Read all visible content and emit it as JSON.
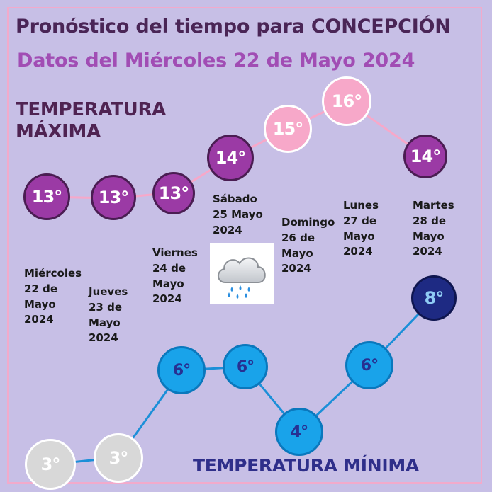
{
  "title": "Pronóstico del tiempo para CONCEPCIÓN",
  "subtitle": "Datos del Miércoles 22 de Mayo 2024",
  "max_heading": {
    "line1": "TEMPERATURA",
    "line2": "MÁXIMA"
  },
  "min_heading": "TEMPERATURA MÍNIMA",
  "days": [
    {
      "lines": [
        "Miércoles",
        "22 de",
        "Mayo",
        "2024"
      ],
      "max": "13°",
      "min": "3°"
    },
    {
      "lines": [
        "Jueves",
        "23 de",
        "Mayo",
        "2024"
      ],
      "max": "13°",
      "min": "3°"
    },
    {
      "lines": [
        "Viernes",
        "24 de",
        "Mayo",
        "2024"
      ],
      "max": "13°",
      "min": "6°"
    },
    {
      "lines": [
        "Sábado",
        "25 Mayo",
        "2024"
      ],
      "max": "14°",
      "min": "6°",
      "icon": "rain-cloud-icon"
    },
    {
      "lines": [
        "Domingo",
        "26 de",
        "Mayo",
        "2024"
      ],
      "max": "15°",
      "min": "4°"
    },
    {
      "lines": [
        "Lunes",
        "27 de",
        "Mayo",
        "2024"
      ],
      "max": "16°",
      "min": "6°"
    },
    {
      "lines": [
        "Martes",
        "28 de",
        "Mayo",
        "2024"
      ],
      "max": "14°",
      "min": "8°"
    }
  ],
  "colors": {
    "background": "#c7bfe6",
    "max_bubble": "#9b3aa5",
    "max_bubble_highlight": "#f7a8c9",
    "min_bubble": "#19a3ea",
    "min_bubble_cold": "#d8d8d8",
    "min_bubble_warm": "#1e2a83",
    "max_line": "#f7a8c9",
    "min_line": "#1b8fd8"
  }
}
